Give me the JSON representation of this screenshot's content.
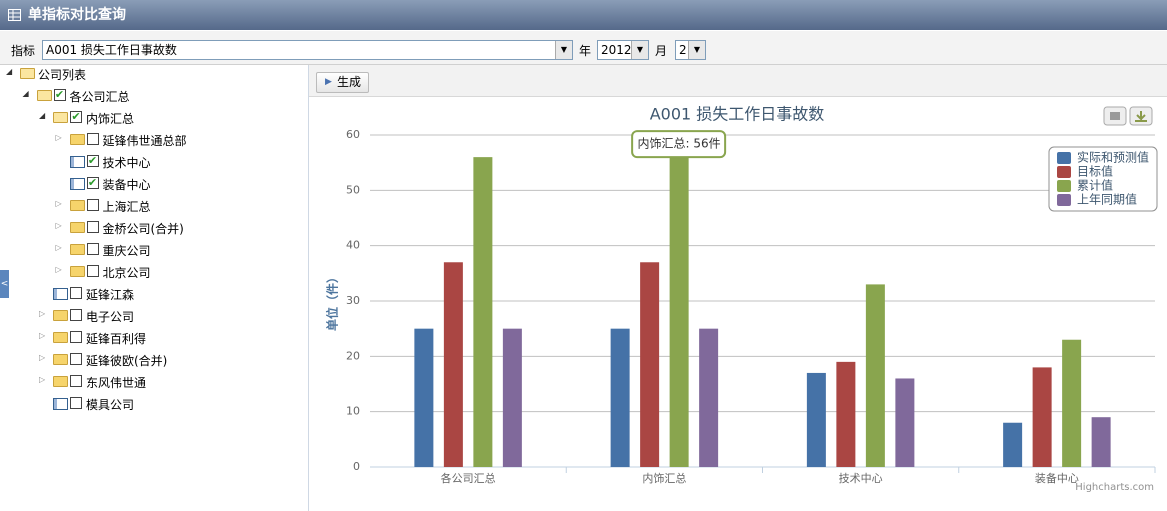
{
  "header": {
    "title": "单指标对比查询"
  },
  "toolbar": {
    "indicator_label": "指标",
    "indicator": "A001 损失工作日事故数",
    "year_label": "年",
    "year": "2012",
    "month_label": "月",
    "month": "2"
  },
  "generate_button": "生成",
  "tree": {
    "label": "公司列表",
    "type": "folder",
    "expanded": true,
    "children": [
      {
        "label": "各公司汇总",
        "type": "folder",
        "checked": true,
        "expanded": true,
        "children": [
          {
            "label": "内饰汇总",
            "type": "folder",
            "checked": true,
            "expanded": true,
            "children": [
              {
                "label": "延锋伟世通总部",
                "type": "folder",
                "checked": false,
                "expanded": false
              },
              {
                "label": "技术中心",
                "type": "item",
                "checked": true
              },
              {
                "label": "装备中心",
                "type": "item",
                "checked": true
              },
              {
                "label": "上海汇总",
                "type": "folder",
                "checked": false,
                "expanded": false
              },
              {
                "label": "金桥公司(合并)",
                "type": "folder",
                "checked": false,
                "expanded": false
              },
              {
                "label": "重庆公司",
                "type": "folder",
                "checked": false,
                "expanded": false
              },
              {
                "label": "北京公司",
                "type": "folder",
                "checked": false,
                "expanded": false
              }
            ]
          },
          {
            "label": "延锋江森",
            "type": "item",
            "checked": false
          },
          {
            "label": "电子公司",
            "type": "folder",
            "checked": false,
            "expanded": false
          },
          {
            "label": "延锋百利得",
            "type": "folder",
            "checked": false,
            "expanded": false
          },
          {
            "label": "延锋彼欧(合并)",
            "type": "folder",
            "checked": false,
            "expanded": false
          },
          {
            "label": "东风伟世通",
            "type": "folder",
            "checked": false,
            "expanded": false
          },
          {
            "label": "模具公司",
            "type": "item",
            "checked": false
          }
        ]
      }
    ]
  },
  "chart_data": {
    "type": "bar",
    "title": "A001 损失工作日事故数",
    "y_label": "单位（件）",
    "categories": [
      "各公司汇总",
      "内饰汇总",
      "技术中心",
      "装备中心"
    ],
    "series": [
      {
        "name": "实际和预测值",
        "color": "#4572A7",
        "values": [
          25,
          25,
          17,
          8
        ]
      },
      {
        "name": "目标值",
        "color": "#AA4643",
        "values": [
          37,
          37,
          19,
          18
        ]
      },
      {
        "name": "累计值",
        "color": "#89A54E",
        "values": [
          56,
          56,
          33,
          23
        ]
      },
      {
        "name": "上年同期值",
        "color": "#80699B",
        "values": [
          25,
          25,
          16,
          9
        ]
      }
    ],
    "ylim": [
      0,
      60
    ],
    "yticks": [
      0,
      10,
      20,
      30,
      40,
      50,
      60
    ],
    "grid": true,
    "legend": "top-right",
    "tooltip": "内饰汇总: 56件",
    "credits": "Highcharts.com"
  }
}
